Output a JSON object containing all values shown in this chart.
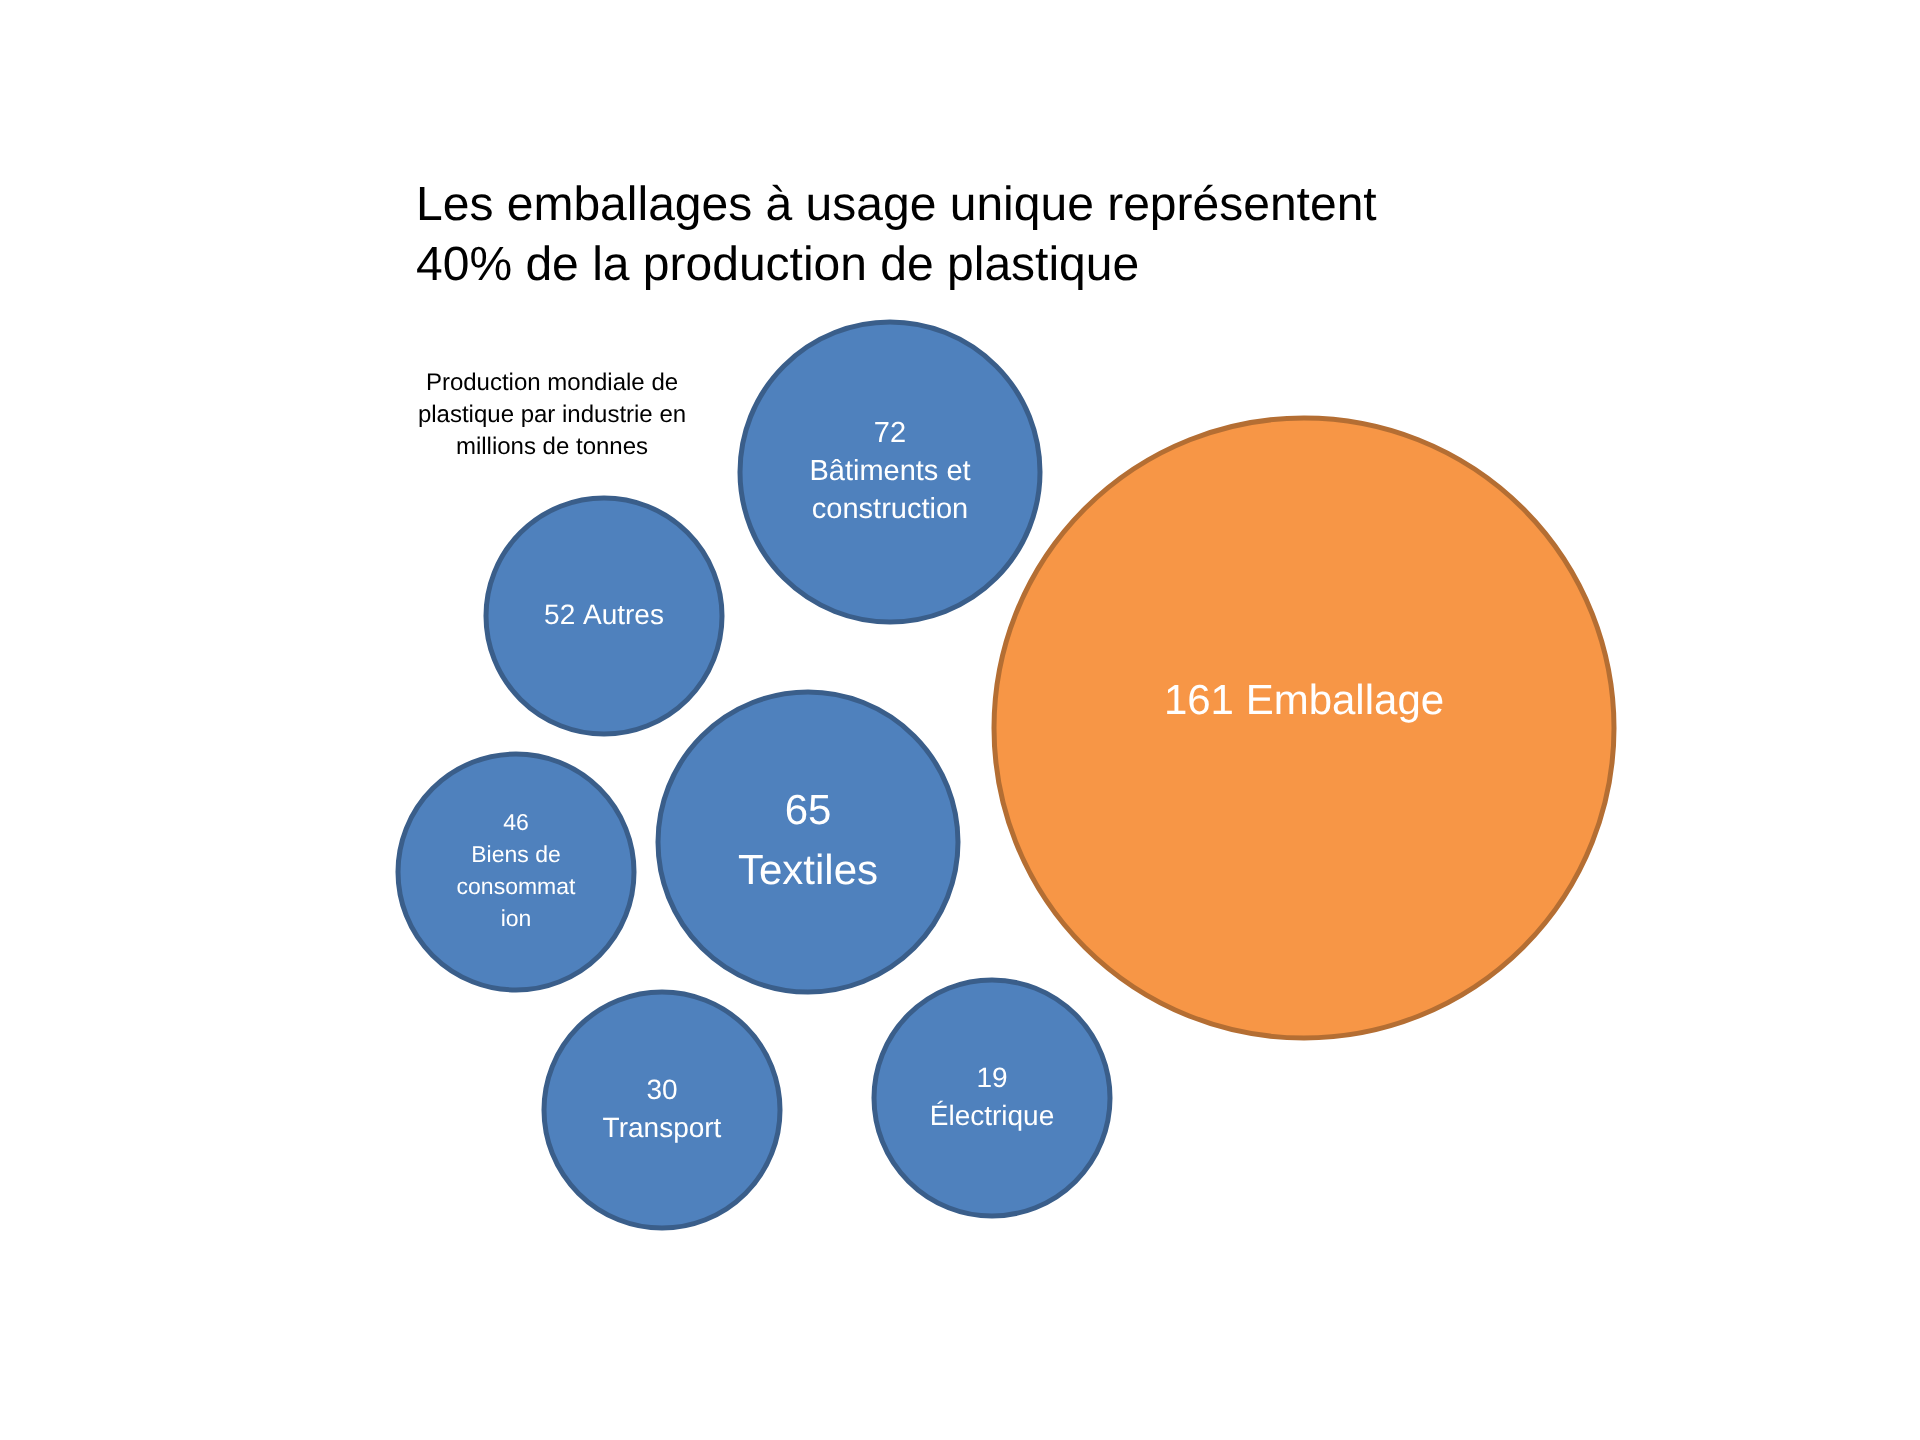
{
  "chart_data": {
    "type": "other",
    "title": "Les emballages à usage unique représentent 40% de la production de plastique",
    "subtitle": "Production mondiale de plastique par industrie en millions de tonnes",
    "categories": [
      "Emballage",
      "Bâtiments et construction",
      "Textiles",
      "Autres",
      "Biens de consommation",
      "Transport",
      "Électrique"
    ],
    "values": [
      161,
      72,
      65,
      52,
      46,
      30,
      19
    ],
    "colors": [
      "#f79646",
      "#4f81bd",
      "#4f81bd",
      "#4f81bd",
      "#4f81bd",
      "#4f81bd",
      "#4f81bd"
    ],
    "data_labels": true
  }
}
